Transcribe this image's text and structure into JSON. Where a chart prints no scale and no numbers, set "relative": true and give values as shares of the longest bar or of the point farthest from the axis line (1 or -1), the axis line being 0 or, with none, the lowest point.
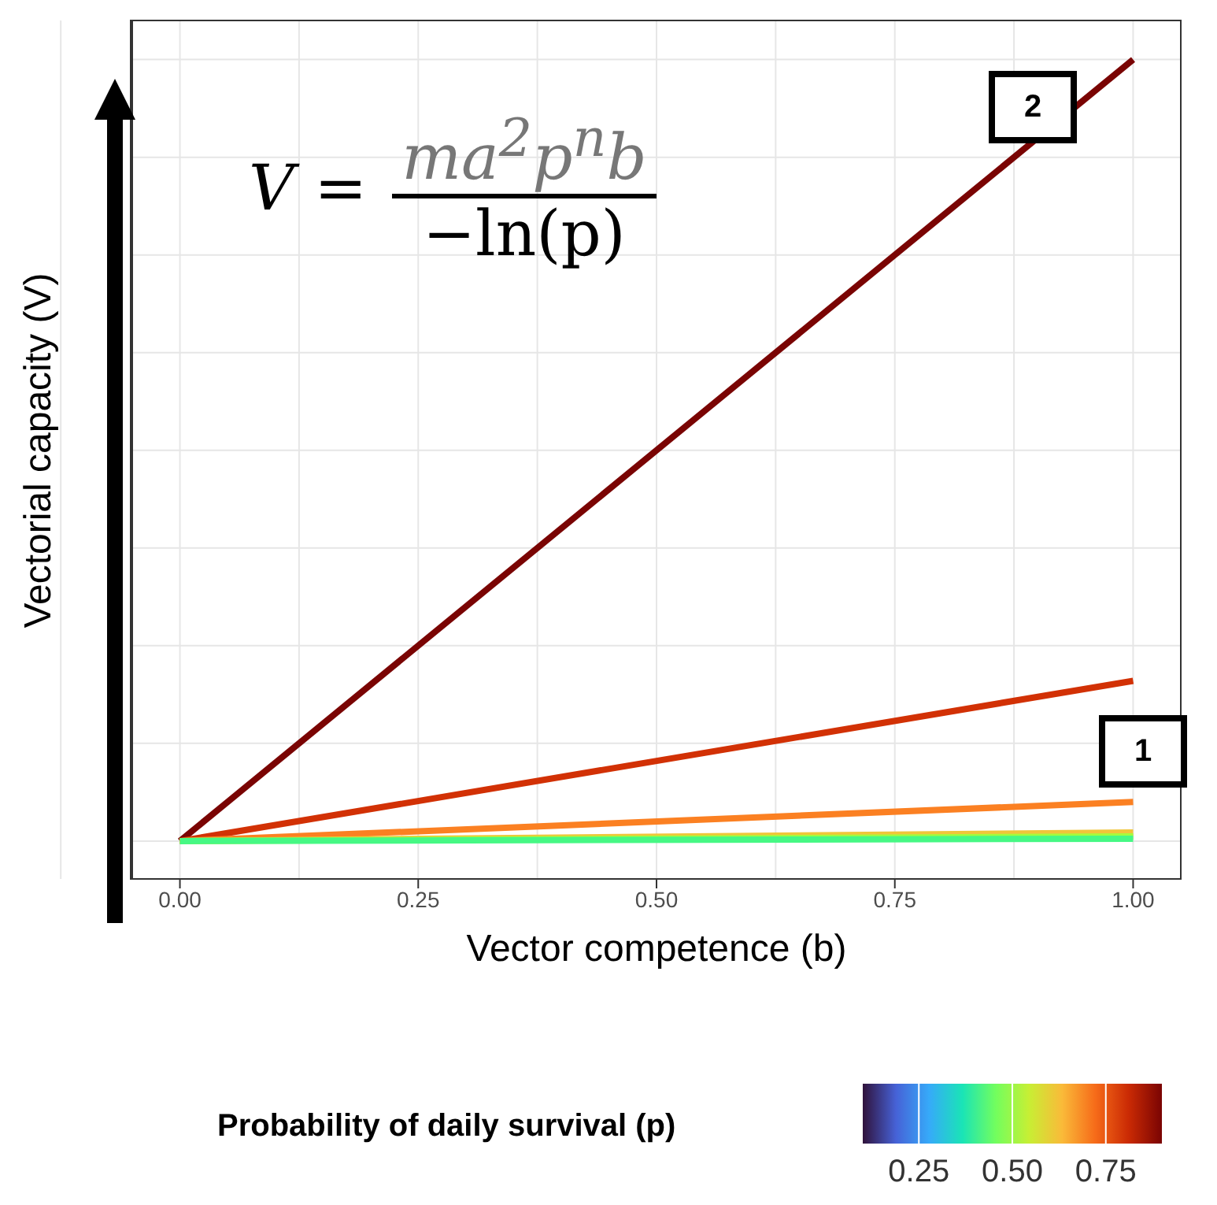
{
  "chart_data": {
    "type": "line",
    "relative": true,
    "xlabel": "Vector competence (b)",
    "ylabel": "Vectorial capacity (V)",
    "clabel": "Probability of daily survival (p)",
    "clim": [
      0.1,
      0.9
    ],
    "cticks": [
      {
        "value": 0.25,
        "label": "0.25"
      },
      {
        "value": 0.5,
        "label": "0.50"
      },
      {
        "value": 0.75,
        "label": "0.75"
      }
    ],
    "x": [
      0,
      1
    ],
    "series": [
      {
        "color": "#7a0403",
        "values": [
          0,
          1
        ]
      },
      {
        "color": "#d23105",
        "values": [
          0,
          0.205
        ]
      },
      {
        "color": "#fb8022",
        "values": [
          0,
          0.05
        ]
      },
      {
        "color": "#f0c53a",
        "values": [
          0,
          0.011
        ]
      },
      {
        "color": "#a4fc3c",
        "values": [
          0,
          0.006
        ]
      },
      {
        "color": "#46f884",
        "values": [
          0,
          0.003
        ]
      }
    ],
    "xlim": [
      -0.05,
      1.05
    ],
    "xticks": [
      {
        "value": 0,
        "label": "0.00"
      },
      {
        "value": 0.25,
        "label": "0.25"
      },
      {
        "value": 0.5,
        "label": "0.50"
      },
      {
        "value": 0.75,
        "label": "0.75"
      },
      {
        "value": 1,
        "label": "1.00"
      }
    ],
    "grid": true,
    "tick_labels": "x",
    "annotations": [
      "V =",
      "ma$^{2}$p$^{n}$b",
      "−ln(p)",
      "2",
      "1"
    ]
  }
}
